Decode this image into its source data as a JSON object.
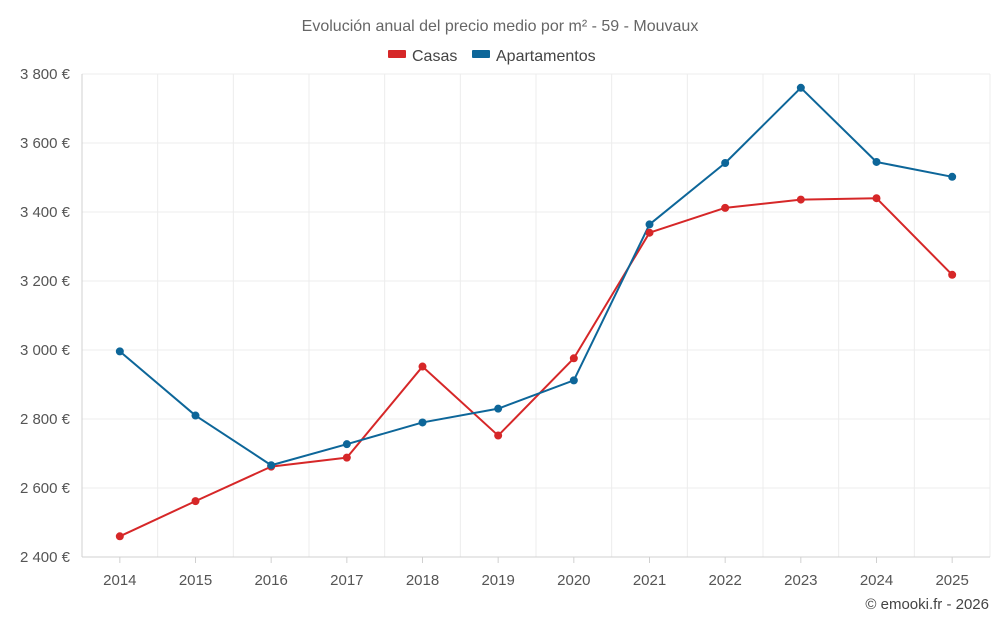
{
  "chart_data": {
    "type": "line",
    "title": "Evolución anual del precio medio por m² - 59 - Mouvaux",
    "categories": [
      "2014",
      "2015",
      "2016",
      "2017",
      "2018",
      "2019",
      "2020",
      "2021",
      "2022",
      "2023",
      "2024",
      "2025"
    ],
    "series": [
      {
        "name": "Casas",
        "color": "#d62728",
        "values": [
          2460,
          2562,
          2662,
          2688,
          2952,
          2752,
          2976,
          3340,
          3412,
          3436,
          3440,
          3218
        ]
      },
      {
        "name": "Apartamentos",
        "color": "#0d6699",
        "values": [
          2996,
          2810,
          2666,
          2727,
          2790,
          2830,
          2912,
          3364,
          3542,
          3760,
          3545,
          3502
        ]
      }
    ],
    "ylim": [
      2400,
      3800
    ],
    "yticks": [
      2400,
      2600,
      2800,
      3000,
      3200,
      3400,
      3600,
      3800
    ],
    "ytick_labels": [
      "2 400 €",
      "2 600 €",
      "2 800 €",
      "3 000 €",
      "3 200 €",
      "3 400 €",
      "3 600 €",
      "3 800 €"
    ],
    "xlabel": "",
    "ylabel": "",
    "grid": true,
    "legend_position": "top-center"
  },
  "credit": "© emooki.fr - 2026"
}
